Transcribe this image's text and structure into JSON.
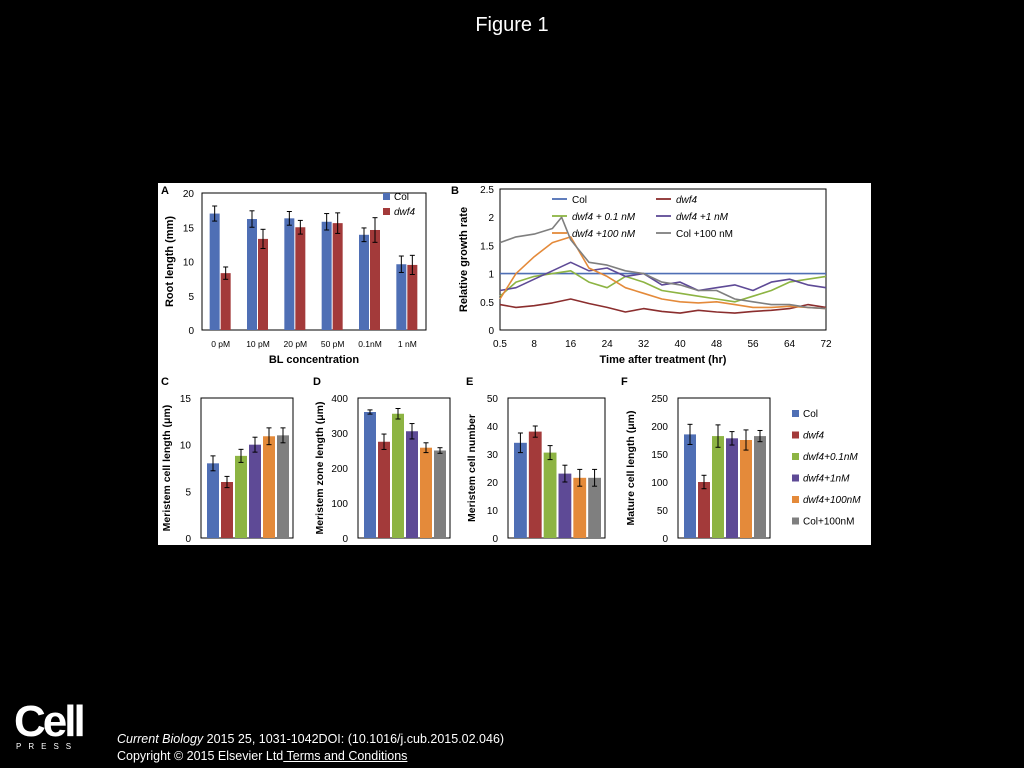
{
  "page": {
    "title": "Figure 1",
    "logo": {
      "main": "Cell",
      "sub": "PRESS"
    },
    "citation": {
      "journal": "Current Biology",
      "details": " 2015 25, 1031-1042DOI: (10.1016/j.cub.2015.02.046)",
      "copyright": "Copyright © 2015 Elsevier Ltd",
      "terms": " Terms and Conditions"
    }
  },
  "chart_data": [
    {
      "panel": "A",
      "type": "bar",
      "xlabel": "BL concentration",
      "ylabel": "Root length (mm)",
      "ylim": [
        0,
        20
      ],
      "yticks": [
        0,
        5,
        10,
        15,
        20
      ],
      "categories": [
        "0 pM",
        "10 pM",
        "20 pM",
        "50 pM",
        "0.1nM",
        "1 nM"
      ],
      "legend_position": "top-right",
      "series": [
        {
          "name": "Col",
          "color": "#4F6FB5",
          "values": [
            17,
            16.2,
            16.3,
            15.8,
            13.9,
            9.6
          ],
          "errors": [
            1.1,
            1.2,
            1.0,
            1.2,
            1.0,
            1.2
          ]
        },
        {
          "name": "dwf4",
          "color": "#A33A3A",
          "values": [
            8.3,
            13.3,
            15.0,
            15.6,
            14.6,
            9.5
          ],
          "errors": [
            0.9,
            1.4,
            1.0,
            1.5,
            1.8,
            1.4
          ]
        }
      ]
    },
    {
      "panel": "B",
      "type": "line",
      "xlabel": "Time after treatment (hr)",
      "ylabel": "Relative growth rate",
      "ylim": [
        0,
        2.5
      ],
      "yticks": [
        "0",
        "0.5",
        "1",
        "1.5",
        "2",
        "2.5"
      ],
      "xlim": [
        0.5,
        72
      ],
      "xticks": [
        "0.5",
        "8",
        "16",
        "24",
        "32",
        "40",
        "48",
        "56",
        "64",
        "72"
      ],
      "legend_position": "top",
      "series": [
        {
          "name": "Col",
          "color": "#4F6FB5",
          "x": [
            0.5,
            72
          ],
          "y": [
            1.0,
            1.0
          ]
        },
        {
          "name": "dwf4",
          "color": "#8B2E2E",
          "x": [
            0.5,
            4,
            8,
            12,
            16,
            20,
            24,
            28,
            32,
            36,
            40,
            44,
            48,
            52,
            56,
            60,
            64,
            68,
            72
          ],
          "y": [
            0.45,
            0.4,
            0.43,
            0.48,
            0.55,
            0.47,
            0.4,
            0.32,
            0.38,
            0.33,
            0.3,
            0.35,
            0.32,
            0.3,
            0.33,
            0.35,
            0.38,
            0.45,
            0.4
          ]
        },
        {
          "name": "dwf4 + 0.1 nM",
          "color": "#8DB443",
          "x": [
            0.5,
            4,
            8,
            12,
            16,
            20,
            24,
            28,
            32,
            36,
            40,
            44,
            48,
            52,
            56,
            60,
            64,
            68,
            72
          ],
          "y": [
            0.6,
            0.85,
            0.95,
            1.0,
            1.05,
            0.85,
            0.75,
            0.95,
            0.85,
            0.7,
            0.65,
            0.6,
            0.55,
            0.5,
            0.6,
            0.7,
            0.85,
            0.9,
            0.95
          ]
        },
        {
          "name": "dwf4 +1 nM",
          "color": "#5E4A96",
          "x": [
            0.5,
            4,
            8,
            12,
            16,
            20,
            24,
            28,
            32,
            36,
            40,
            44,
            48,
            52,
            56,
            60,
            64,
            68,
            72
          ],
          "y": [
            0.7,
            0.75,
            0.9,
            1.05,
            1.2,
            1.05,
            1.1,
            0.95,
            1.0,
            0.8,
            0.85,
            0.7,
            0.75,
            0.8,
            0.7,
            0.85,
            0.9,
            0.8,
            0.75
          ]
        },
        {
          "name": "dwf4 +100 nM",
          "color": "#E48A3A",
          "x": [
            0.5,
            4,
            8,
            12,
            16,
            20,
            24,
            28,
            32,
            36,
            40,
            44,
            48,
            52,
            56,
            60,
            64,
            68,
            72
          ],
          "y": [
            0.55,
            1.0,
            1.3,
            1.55,
            1.65,
            1.1,
            0.95,
            0.75,
            0.65,
            0.55,
            0.5,
            0.48,
            0.5,
            0.45,
            0.4,
            0.4,
            0.42,
            0.4,
            0.38
          ]
        },
        {
          "name": "Col +100 nM",
          "color": "#7F7F7F",
          "x": [
            0.5,
            4,
            8,
            12,
            14,
            16,
            20,
            24,
            28,
            32,
            36,
            40,
            44,
            48,
            52,
            56,
            60,
            64,
            68,
            72
          ],
          "y": [
            1.55,
            1.65,
            1.7,
            1.8,
            2.0,
            1.6,
            1.2,
            1.15,
            1.05,
            1.0,
            0.85,
            0.8,
            0.7,
            0.7,
            0.55,
            0.5,
            0.45,
            0.45,
            0.4,
            0.38
          ]
        }
      ]
    },
    {
      "panel": "C",
      "type": "bar",
      "ylabel": "Meristem cell length (μm)",
      "ylim": [
        0,
        15
      ],
      "yticks": [
        0,
        5,
        10,
        15
      ],
      "values": [
        8.0,
        6.0,
        8.8,
        10.0,
        10.9,
        11.0
      ],
      "errors": [
        0.8,
        0.6,
        0.7,
        0.8,
        0.9,
        0.8
      ]
    },
    {
      "panel": "D",
      "type": "bar",
      "ylabel": "Meristem  zone length (μm)",
      "ylim": [
        0,
        400
      ],
      "yticks": [
        0,
        100,
        200,
        300,
        400
      ],
      "values": [
        360,
        275,
        355,
        305,
        258,
        250
      ],
      "errors": [
        6,
        22,
        15,
        22,
        14,
        8
      ]
    },
    {
      "panel": "E",
      "type": "bar",
      "ylabel": "Meristem cell number",
      "ylim": [
        0,
        50
      ],
      "yticks": [
        0,
        10,
        20,
        30,
        40,
        50
      ],
      "values": [
        34,
        38,
        30.5,
        23,
        21.5,
        21.5
      ],
      "errors": [
        3.5,
        2,
        2.5,
        3,
        3,
        3
      ]
    },
    {
      "panel": "F",
      "type": "bar",
      "ylabel": "Mature cell length (μm)",
      "ylim": [
        0,
        250
      ],
      "yticks": [
        0,
        50,
        100,
        150,
        200,
        250
      ],
      "values": [
        185,
        100,
        182,
        178,
        175,
        182
      ],
      "errors": [
        18,
        12,
        20,
        12,
        18,
        10
      ]
    }
  ],
  "shared_legend": {
    "position": "right",
    "entries": [
      {
        "name": "Col",
        "color": "#4F6FB5"
      },
      {
        "name": "dwf4",
        "color": "#A33A3A"
      },
      {
        "name": "dwf4+0.1nM",
        "color": "#8DB443"
      },
      {
        "name": "dwf4+1nM",
        "color": "#5E4A96"
      },
      {
        "name": "dwf4+100nM",
        "color": "#E48A3A"
      },
      {
        "name": "Col+100nM",
        "color": "#7F7F7F"
      }
    ]
  }
}
